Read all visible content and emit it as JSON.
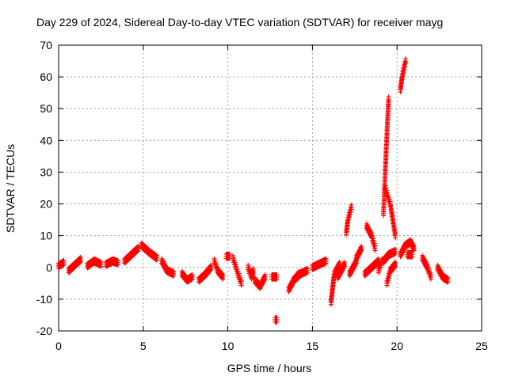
{
  "chart_data": {
    "type": "scatter",
    "title": "Day 229 of 2024, Sidereal Day-to-day VTEC variation (SDTVAR) for receiver mayg",
    "xlabel": "GPS time / hours",
    "ylabel": "SDTVAR / TECUs",
    "xlim": [
      0,
      25
    ],
    "ylim": [
      -20,
      70
    ],
    "xticks": [
      0,
      5,
      10,
      15,
      20,
      25
    ],
    "yticks": [
      -20,
      -10,
      0,
      10,
      20,
      30,
      40,
      50,
      60,
      70
    ],
    "xtick_labels": [
      "0",
      "5",
      "10",
      "15",
      "20",
      "25"
    ],
    "ytick_labels": [
      "-20",
      "-10",
      "0",
      "10",
      "20",
      "30",
      "40",
      "50",
      "60",
      "70"
    ],
    "grid": true,
    "marker": "+",
    "color": "#ff0000",
    "series": [
      {
        "name": "SDTVAR",
        "segments": [
          {
            "x": [
              0.0,
              0.3
            ],
            "y": [
              0.5,
              1.5
            ]
          },
          {
            "x": [
              0.6,
              1.0,
              1.3
            ],
            "y": [
              -1.0,
              1.0,
              2.5
            ]
          },
          {
            "x": [
              1.7,
              2.1,
              2.5
            ],
            "y": [
              0.5,
              2.0,
              1.0
            ]
          },
          {
            "x": [
              2.8,
              3.2,
              3.5
            ],
            "y": [
              1.0,
              2.0,
              1.5
            ]
          },
          {
            "x": [
              3.9,
              4.3,
              4.7
            ],
            "y": [
              2.0,
              4.0,
              6.0
            ]
          },
          {
            "x": [
              4.9,
              5.3,
              5.8
            ],
            "y": [
              7.0,
              5.0,
              3.0
            ]
          },
          {
            "x": [
              6.1,
              6.4,
              6.8
            ],
            "y": [
              2.0,
              -1.0,
              -2.0
            ]
          },
          {
            "x": [
              7.3,
              7.6,
              7.9
            ],
            "y": [
              -2.0,
              -4.0,
              -3.0
            ]
          },
          {
            "x": [
              8.3,
              8.7,
              9.0
            ],
            "y": [
              -4.0,
              -2.0,
              0.0
            ]
          },
          {
            "x": [
              9.2,
              9.4,
              9.7
            ],
            "y": [
              2.0,
              -1.0,
              -3.0
            ]
          },
          {
            "x": [
              9.9,
              10.1
            ],
            "y": [
              3.5,
              3.5
            ]
          },
          {
            "x": [
              10.3,
              10.6,
              10.8
            ],
            "y": [
              3.0,
              -2.0,
              -5.0
            ]
          },
          {
            "x": [
              11.2,
              11.4,
              11.5
            ],
            "y": [
              0.0,
              -3.0,
              -1.0
            ]
          },
          {
            "x": [
              11.6,
              11.9,
              12.2
            ],
            "y": [
              -4.0,
              -6.0,
              -3.0
            ]
          },
          {
            "x": [
              12.6,
              12.9
            ],
            "y": [
              -3.0,
              -3.0
            ]
          },
          {
            "x": [
              12.8,
              12.9
            ],
            "y": [
              -16.5,
              -16.5
            ]
          },
          {
            "x": [
              13.6,
              13.9,
              14.2
            ],
            "y": [
              -7.0,
              -4.0,
              -2.0
            ]
          },
          {
            "x": [
              13.9,
              14.3,
              14.7
            ],
            "y": [
              -4.0,
              -2.0,
              -1.0
            ]
          },
          {
            "x": [
              15.0,
              15.4,
              15.8
            ],
            "y": [
              0.0,
              1.0,
              2.0
            ]
          },
          {
            "x": [
              16.1,
              16.2,
              16.3,
              16.6
            ],
            "y": [
              -11.0,
              -6.0,
              -2.0,
              1.0
            ]
          },
          {
            "x": [
              16.5,
              16.7,
              16.9
            ],
            "y": [
              -3.0,
              -1.0,
              1.0
            ]
          },
          {
            "x": [
              17.0,
              17.1,
              17.3
            ],
            "y": [
              11.0,
              15.0,
              19.0
            ]
          },
          {
            "x": [
              17.2,
              17.4,
              17.6
            ],
            "y": [
              -2.0,
              0.0,
              2.0
            ]
          },
          {
            "x": [
              17.6,
              17.9
            ],
            "y": [
              3.0,
              6.0
            ]
          },
          {
            "x": [
              18.2,
              18.5,
              18.7
            ],
            "y": [
              13.0,
              10.0,
              6.0
            ]
          },
          {
            "x": [
              18.1,
              18.5,
              18.9
            ],
            "y": [
              -2.0,
              0.0,
              2.0
            ]
          },
          {
            "x": [
              18.9,
              19.1
            ],
            "y": [
              -1.0,
              2.0
            ]
          },
          {
            "x": [
              19.2,
              19.3,
              19.5
            ],
            "y": [
              17.0,
              30.0,
              53.0
            ]
          },
          {
            "x": [
              19.3,
              19.6,
              19.9
            ],
            "y": [
              25.0,
              20.0,
              10.0
            ]
          },
          {
            "x": [
              19.2,
              19.5,
              19.9
            ],
            "y": [
              2.0,
              4.0,
              5.0
            ]
          },
          {
            "x": [
              19.4,
              19.6,
              19.9
            ],
            "y": [
              -5.0,
              -1.0,
              1.0
            ]
          },
          {
            "x": [
              20.2,
              20.3,
              20.5
            ],
            "y": [
              56.0,
              60.0,
              65.0
            ]
          },
          {
            "x": [
              20.2,
              20.5,
              20.8,
              21.0
            ],
            "y": [
              4.0,
              7.0,
              8.0,
              6.0
            ]
          },
          {
            "x": [
              20.6,
              20.9
            ],
            "y": [
              4.0,
              4.0
            ]
          },
          {
            "x": [
              21.5,
              21.8,
              22.0
            ],
            "y": [
              3.0,
              0.0,
              -3.0
            ]
          },
          {
            "x": [
              22.4,
              22.7,
              23.0
            ],
            "y": [
              0.0,
              -3.0,
              -4.0
            ]
          }
        ]
      }
    ]
  }
}
